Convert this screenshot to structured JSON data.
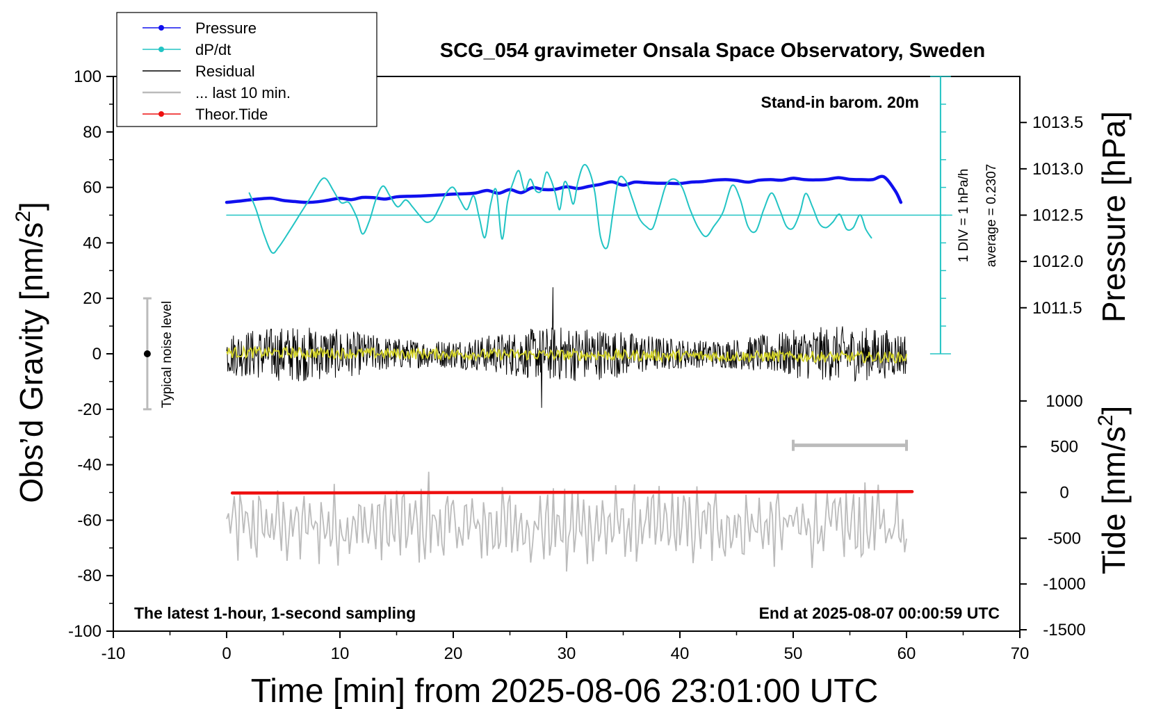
{
  "chart_data": {
    "type": "line",
    "title": "SCG_054 gravimeter Onsala Space Observatory, Sweden",
    "xlabel": "Time [min] from 2025-08-06 23:01:00 UTC",
    "ylabel_prefix": "Obs’d Gravity [nm/s",
    "ylabel_sup": "2",
    "ylabel_suffix": "]",
    "y2label": "Pressure [hPa]",
    "y3label_prefix": "Tide [nm/s",
    "y3label_sup": "2",
    "y3label_suffix": "]",
    "xlim": [
      -10,
      70
    ],
    "ylim": [
      -100,
      100
    ],
    "xticks": [
      "-10",
      "0",
      "10",
      "20",
      "30",
      "40",
      "50",
      "60",
      "70"
    ],
    "yticks": [
      "100",
      "80",
      "60",
      "40",
      "20",
      "0",
      "-20",
      "-40",
      "-60",
      "-80",
      "-100"
    ],
    "pressure_ticks": [
      "1013.5",
      "1013.0",
      "1012.5",
      "1012.0",
      "1011.5"
    ],
    "tide_ticks": [
      "1000",
      "500",
      "0",
      "-500",
      "-1000",
      "-1500"
    ],
    "legend": [
      {
        "name": "Pressure",
        "color": "#1010ee",
        "marker": "dot"
      },
      {
        "name": "dP/dt",
        "color": "#22c4c4",
        "marker": "dot"
      },
      {
        "name": "Residual",
        "color": "#000000",
        "marker": "none"
      },
      {
        "name": "... last 10 min.",
        "color": "#bbbbbb",
        "marker": "none"
      },
      {
        "name": "Theor.Tide",
        "color": "#ee1010",
        "marker": "dot"
      }
    ],
    "annotations": {
      "barometer": "Stand-in barom. 20m",
      "div_note": "1 DIV = 1 hPa/h",
      "average_note": "average = 0.2307",
      "noise_level": "Typical noise level",
      "bottom_left": "The latest 1-hour, 1-second sampling",
      "bottom_right": "End at 2025-08-07 00:00:59 UTC"
    },
    "noise_level": {
      "x": -7,
      "center": 0,
      "low": -20,
      "high": 20
    },
    "last10_bar": {
      "x_start": 50,
      "x_end": 60
    },
    "series": [
      {
        "name": "Pressure",
        "axis": "gravity-equivalent",
        "x": [
          0,
          1,
          2,
          3,
          4,
          5,
          6,
          7,
          8,
          9,
          10,
          11,
          12,
          13,
          14,
          15,
          16,
          17,
          18,
          19,
          20,
          21,
          22,
          23,
          24,
          25,
          26,
          27,
          28,
          29,
          30,
          31,
          32,
          33,
          34,
          35,
          36,
          37,
          38,
          39,
          40,
          41,
          42,
          43,
          44,
          45,
          46,
          47,
          48,
          49,
          50,
          51,
          52,
          53,
          54,
          55,
          56,
          57,
          58,
          59,
          59.5
        ],
        "y": [
          54.6,
          55,
          55.5,
          55.9,
          56.1,
          55.3,
          54.9,
          54.6,
          54.8,
          55.4,
          56.1,
          55.6,
          56.4,
          56.3,
          55.8,
          56.6,
          56.8,
          56.9,
          57.1,
          57.3,
          57.6,
          57.7,
          58,
          58.9,
          57.9,
          59.2,
          58.1,
          59.9,
          59.2,
          59.3,
          60.2,
          59.6,
          60.4,
          61.1,
          62,
          60.8,
          61.9,
          61.7,
          61.5,
          61.5,
          61.4,
          61.9,
          62.1,
          62.6,
          62.8,
          62.5,
          61.9,
          62.6,
          62.8,
          62.6,
          63.3,
          62.8,
          62.7,
          62.9,
          63.5,
          62.9,
          62.8,
          62.8,
          63.8,
          58.8,
          54.6
        ]
      },
      {
        "name": "dP/dt",
        "axis": "gravity-equivalent",
        "x": [
          2,
          2.6,
          3.3,
          4,
          4.6,
          5.5,
          6.5,
          7.5,
          8.3,
          8.8,
          9.4,
          10.1,
          10.8,
          11.5,
          12,
          12.6,
          13.2,
          13.8,
          14.4,
          15.1,
          15.8,
          16.4,
          17,
          17.6,
          18.2,
          18.8,
          19.4,
          20,
          20.6,
          21.2,
          21.8,
          22.3,
          22.8,
          23.3,
          23.8,
          24.3,
          24.8,
          25.3,
          25.8,
          26.3,
          26.8,
          27.3,
          27.8,
          28.2,
          28.6,
          29,
          29.4,
          29.8,
          30.2,
          30.6,
          31,
          31.5,
          32,
          32.5,
          33,
          33.6,
          34.1,
          34.6,
          35.2,
          35.8,
          36.4,
          37,
          37.6,
          38.2,
          38.8,
          39.5,
          40.2,
          40.9,
          41.6,
          42.3,
          43,
          43.8,
          44.6,
          45.3,
          46,
          46.7,
          47.4,
          48.1,
          48.8,
          49.4,
          50,
          50.6,
          51.1,
          51.7,
          52.3,
          52.9,
          53.5,
          54.1,
          54.7,
          55.3,
          55.9,
          56.4,
          56.9
        ],
        "y": [
          58,
          52,
          43,
          36.5,
          38.5,
          44,
          50.5,
          57,
          62.5,
          63,
          59,
          54.5,
          54.5,
          49,
          43.2,
          48,
          56,
          60.5,
          57,
          53,
          55.5,
          53,
          50,
          47.5,
          48.5,
          53,
          58,
          60,
          55.5,
          52,
          57,
          49,
          41.9,
          54,
          59,
          41.4,
          55,
          62,
          66,
          59,
          63,
          58.7,
          59,
          65.4,
          63,
          58,
          52,
          61.8,
          59.5,
          54,
          62,
          68,
          66,
          58,
          42,
          38.5,
          51,
          63,
          62.5,
          56,
          49,
          46,
          45.3,
          53,
          61,
          63,
          60,
          52,
          45.6,
          42.3,
          46,
          51,
          60.7,
          56,
          46,
          44.2,
          52,
          58,
          52.1,
          46,
          45.4,
          51,
          57.8,
          53,
          47,
          45.5,
          47.5,
          50.3,
          45,
          45.5,
          50.1,
          45,
          41.8
        ]
      },
      {
        "name": "dP/dt zero line",
        "axis": "gravity-equivalent",
        "x": [
          0,
          64
        ],
        "y": [
          50,
          50
        ]
      },
      {
        "name": "Theor.Tide",
        "axis": "gravity-equivalent",
        "x": [
          0.5,
          60.5
        ],
        "y": [
          -50.2,
          -49.7
        ]
      }
    ],
    "generated_series": [
      {
        "name": "Residual",
        "x_range": [
          0,
          60
        ],
        "center": 0,
        "envelope_amplitude": 10,
        "max_spike": 24,
        "min_spike": -19.5,
        "samples": 1200
      },
      {
        "name": "Residual smoothed",
        "x_range": [
          0,
          60
        ],
        "center": 0.5,
        "amplitude": 2
      },
      {
        "name": "... last 10 min.",
        "x_range": [
          0,
          60
        ],
        "center": -62,
        "amplitude": 10,
        "max_spike": -42.5,
        "min_spike": -78.5,
        "samples": 360
      }
    ],
    "colors": {
      "pressure": "#1010ee",
      "dpdt": "#22c4c4",
      "residual": "#000000",
      "residual_smoothed": "#d4d42a",
      "last10": "#bbbbbb",
      "tide": "#ee1010",
      "frame": "#000000"
    },
    "grid": false,
    "legend_position": "top-left"
  }
}
